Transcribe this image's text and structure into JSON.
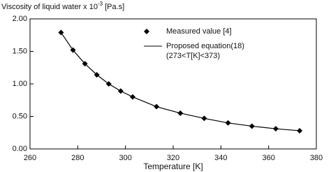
{
  "chart_data": {
    "type": "scatter-line",
    "ylabel": "Viscosity of liquid water x 10",
    "ylabel_exp": "-3",
    "ylabel_unit": "[Pa.s]",
    "xlabel": "Temperature [K]",
    "xlim": [
      260,
      380
    ],
    "xticks": [
      260,
      280,
      300,
      320,
      340,
      360,
      380
    ],
    "ylim": [
      0,
      2
    ],
    "yticks": [
      {
        "value": 0,
        "label": "0.00"
      },
      {
        "value": 0.5,
        "label": "0.50"
      },
      {
        "value": 1,
        "label": "1.00"
      },
      {
        "value": 1.5,
        "label": "1.50"
      },
      {
        "value": 2,
        "label": "2.00"
      }
    ],
    "series": [
      {
        "name": "Measured value [4]",
        "color": "#000000",
        "mode": "markers",
        "x": [
          273,
          278,
          283,
          288,
          293,
          298,
          303,
          313,
          323,
          333,
          343,
          353,
          363,
          373
        ],
        "values": [
          1.79,
          1.52,
          1.31,
          1.14,
          1.0,
          0.89,
          0.8,
          0.65,
          0.55,
          0.47,
          0.4,
          0.35,
          0.31,
          0.28
        ]
      },
      {
        "name": "Proposed equation(18)",
        "color": "#000000",
        "mode": "line",
        "x": [
          273,
          278,
          283,
          288,
          293,
          298,
          303,
          313,
          323,
          333,
          343,
          353,
          363,
          373
        ],
        "values": [
          1.79,
          1.52,
          1.31,
          1.14,
          1.0,
          0.89,
          0.8,
          0.65,
          0.55,
          0.47,
          0.4,
          0.35,
          0.31,
          0.28
        ]
      }
    ],
    "legend_note": "(273<T[K]<373)"
  }
}
